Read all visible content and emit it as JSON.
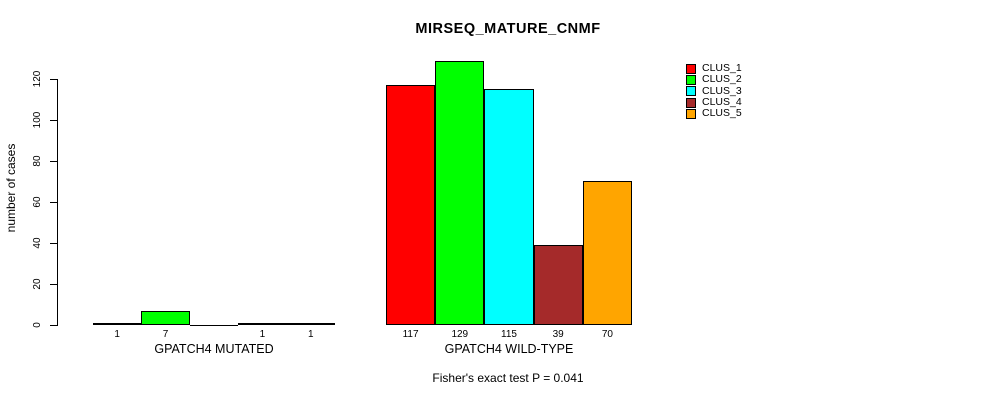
{
  "chart_data": {
    "type": "bar",
    "title": "MIRSEQ_MATURE_CNMF",
    "ylabel": "number of cases",
    "xlabel": "",
    "ylim": [
      0,
      120
    ],
    "yticks": [
      0,
      20,
      40,
      60,
      80,
      100,
      120
    ],
    "grid": false,
    "legend_position": "topright",
    "series": [
      {
        "name": "CLUS_1",
        "color": "#FF0000"
      },
      {
        "name": "CLUS_2",
        "color": "#00FF00"
      },
      {
        "name": "CLUS_3",
        "color": "#00FFFF"
      },
      {
        "name": "CLUS_4",
        "color": "#A52A2A"
      },
      {
        "name": "CLUS_5",
        "color": "#FFA500"
      }
    ],
    "groups": [
      {
        "label": "GPATCH4 MUTATED",
        "values": [
          1,
          7,
          0,
          1,
          1
        ],
        "bar_labels": [
          "1",
          "7",
          "",
          "1",
          "1"
        ]
      },
      {
        "label": "GPATCH4 WILD-TYPE",
        "values": [
          117,
          129,
          115,
          39,
          70
        ],
        "bar_labels": [
          "117",
          "129",
          "115",
          "39",
          "70"
        ]
      }
    ],
    "footnote": "Fisher's exact test P = 0.041"
  }
}
